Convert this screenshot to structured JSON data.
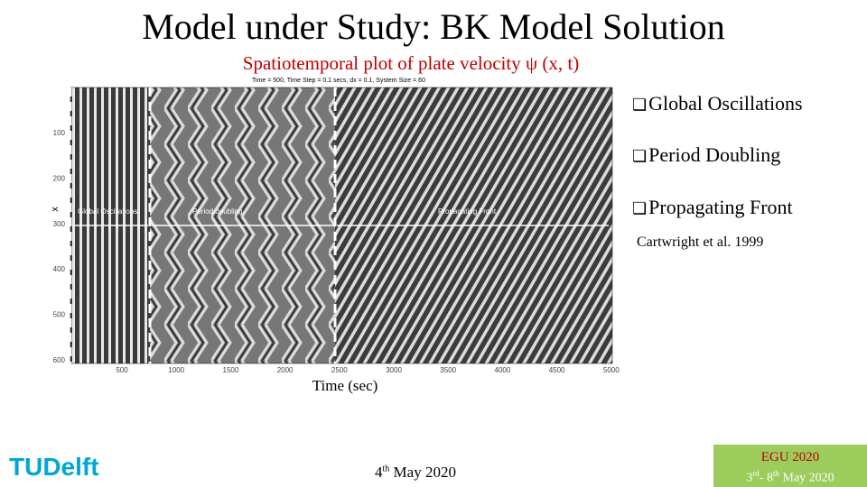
{
  "title": "Model under Study: BK Model Solution",
  "subtitle": "Spatiotemporal plot of plate velocity ψ (x, t)",
  "plot": {
    "header": "Time = 500, Time Step = 0.1 secs, dx = 0.1, System Size = 60",
    "y_label": "x",
    "x_label": "Time (sec)",
    "yticks": [
      100,
      200,
      300,
      400,
      500,
      600
    ],
    "xticks": [
      500,
      1000,
      1500,
      2000,
      2500,
      3000,
      3500,
      4000,
      4500,
      5000
    ],
    "regions": [
      "Global Oscillations",
      "Period doubling",
      "Propagating Front"
    ]
  },
  "bullets": [
    "Global Oscillations",
    "Period Doubling",
    "Propagating Front"
  ],
  "citation": "Cartwright et al. 1999",
  "footer": {
    "logo": "TUDelft",
    "date": {
      "day": "4",
      "suffix": "th",
      "rest": " May 2020"
    },
    "badge": {
      "title": "EGU 2020",
      "parts": [
        "3",
        "rd",
        "- 8",
        "th",
        " May 2020"
      ]
    }
  }
}
